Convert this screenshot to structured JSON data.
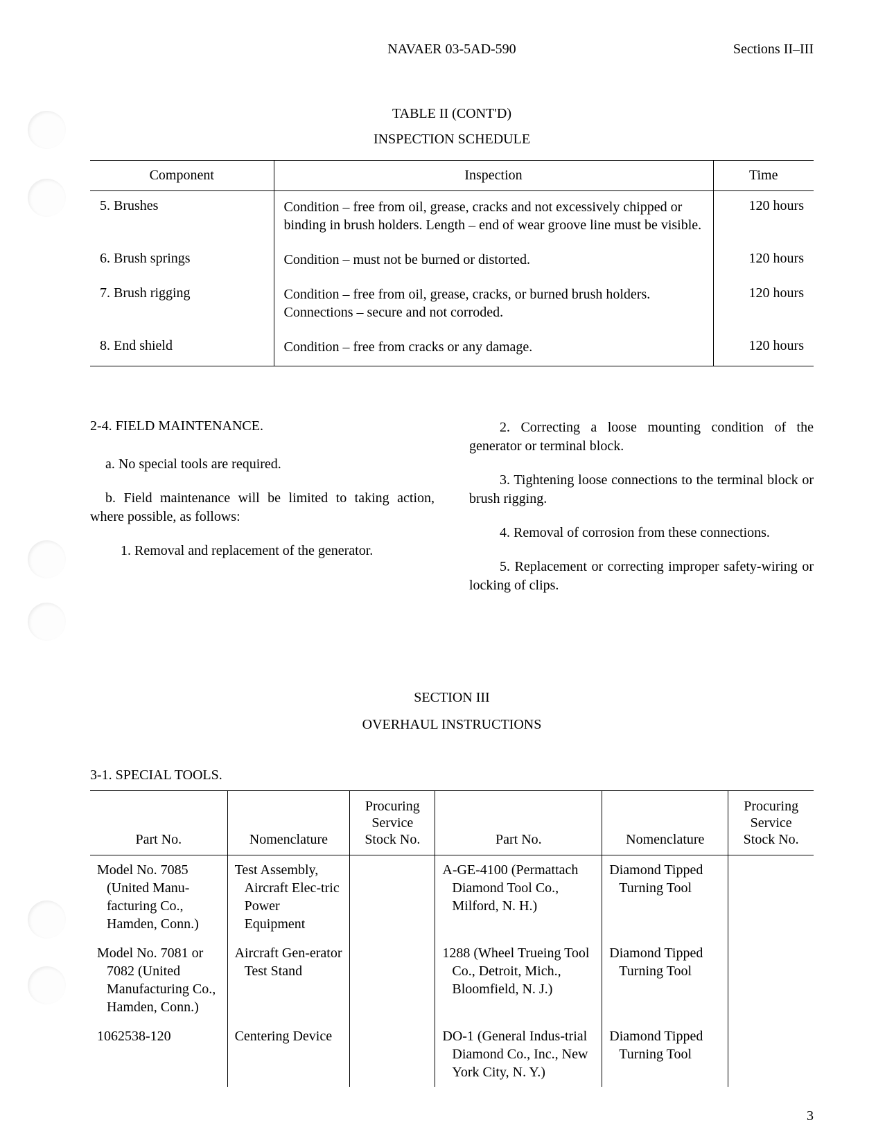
{
  "header": {
    "doc_number": "NAVAER 03-5AD-590",
    "sections": "Sections II–III"
  },
  "table2": {
    "title": "TABLE II (CONT'D)",
    "subtitle": "INSPECTION SCHEDULE",
    "headers": {
      "component": "Component",
      "inspection": "Inspection",
      "time": "Time"
    },
    "rows": [
      {
        "num": "5.",
        "component": "Brushes",
        "inspection": "Condition – free from oil, grease, cracks and not excessively chipped or binding in brush holders. Length – end of wear groove line must be visible.",
        "time": "120 hours"
      },
      {
        "num": "6.",
        "component": "Brush springs",
        "inspection": "Condition – must not be burned or distorted.",
        "time": "120 hours"
      },
      {
        "num": "7.",
        "component": "Brush rigging",
        "inspection": "Condition – free from oil, grease, cracks, or burned brush holders.  Connections – secure and not corroded.",
        "time": "120 hours"
      },
      {
        "num": "8.",
        "component": "End shield",
        "inspection": "Condition – free from cracks or any damage.",
        "time": "120 hours"
      }
    ]
  },
  "section2_4": {
    "heading": "2-4. FIELD MAINTENANCE.",
    "a": "a. No special tools are required.",
    "b": "b. Field maintenance will be limited to taking action, where possible, as follows:",
    "item1": "1. Removal and replacement of the generator.",
    "item2": "2. Correcting a loose mounting condition of the generator or terminal block.",
    "item3": "3. Tightening loose connections to the terminal block or brush rigging.",
    "item4": "4. Removal of corrosion from these connections.",
    "item5": "5. Replacement or correcting improper safety-wiring or locking of clips."
  },
  "section3": {
    "title": "SECTION III",
    "subtitle": "OVERHAUL INSTRUCTIONS"
  },
  "tools": {
    "heading": "3-1. SPECIAL TOOLS.",
    "headers": {
      "partno": "Part No.",
      "nomen": "Nomenclature",
      "stock": "Procuring Service Stock No."
    },
    "left_rows": [
      {
        "partno": "Model No. 7085 (United Manu-facturing Co., Hamden, Conn.)",
        "nomen": "Test Assembly, Aircraft Elec-tric Power Equipment",
        "stock": ""
      },
      {
        "partno": "Model No. 7081 or 7082 (United Manufacturing Co., Hamden, Conn.)",
        "nomen": "Aircraft Gen-erator Test Stand",
        "stock": ""
      },
      {
        "partno": "1062538-120",
        "nomen": "Centering Device",
        "stock": ""
      }
    ],
    "right_rows": [
      {
        "partno": "A-GE-4100 (Permattach Diamond Tool Co., Milford, N. H.)",
        "nomen": "Diamond Tipped Turning Tool",
        "stock": ""
      },
      {
        "partno": "1288 (Wheel Trueing Tool Co., Detroit, Mich., Bloomfield, N. J.)",
        "nomen": "Diamond Tipped Turning Tool",
        "stock": ""
      },
      {
        "partno": "DO-1 (General Indus-trial Diamond Co., Inc., New York City, N. Y.)",
        "nomen": "Diamond Tipped Turning Tool",
        "stock": ""
      }
    ]
  },
  "page_number": "3",
  "colors": {
    "text": "#000000",
    "background": "#ffffff",
    "rule": "#000000"
  }
}
